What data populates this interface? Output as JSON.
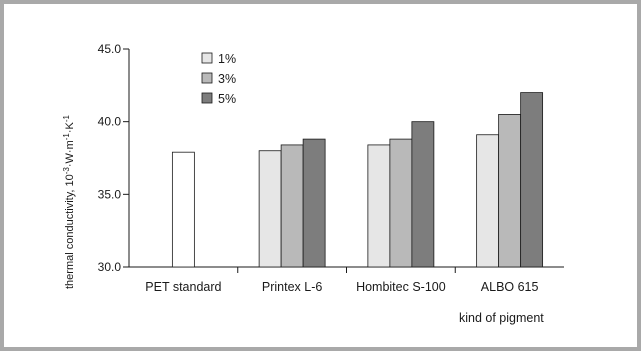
{
  "chart_data": {
    "type": "bar",
    "categories": [
      "PET standard",
      "Printex L-6",
      "Hombitec S-100",
      "ALBO 615"
    ],
    "series": [
      {
        "name": "",
        "values": [
          37.9,
          null,
          null,
          null
        ],
        "color": "#ffffff"
      },
      {
        "name": "1%",
        "values": [
          null,
          38.0,
          38.4,
          39.1
        ],
        "color": "#e6e6e6"
      },
      {
        "name": "3%",
        "values": [
          null,
          38.4,
          38.8,
          40.5
        ],
        "color": "#b9b9b9"
      },
      {
        "name": "5%",
        "values": [
          null,
          38.8,
          40.0,
          42.0
        ],
        "color": "#7d7d7d"
      }
    ],
    "ylim": [
      30.0,
      45.0
    ],
    "yticks": [
      "30.0",
      "35.0",
      "40.0",
      "45.0"
    ],
    "xlabel": "kind of pigment",
    "ylabel_parts": [
      "thermal conductivity, 10",
      "-3",
      "·W·m",
      "-1",
      "·K",
      "-1"
    ],
    "legend": [
      "1%",
      "3%",
      "5%"
    ],
    "legend_position": "top-left",
    "grid": false
  }
}
